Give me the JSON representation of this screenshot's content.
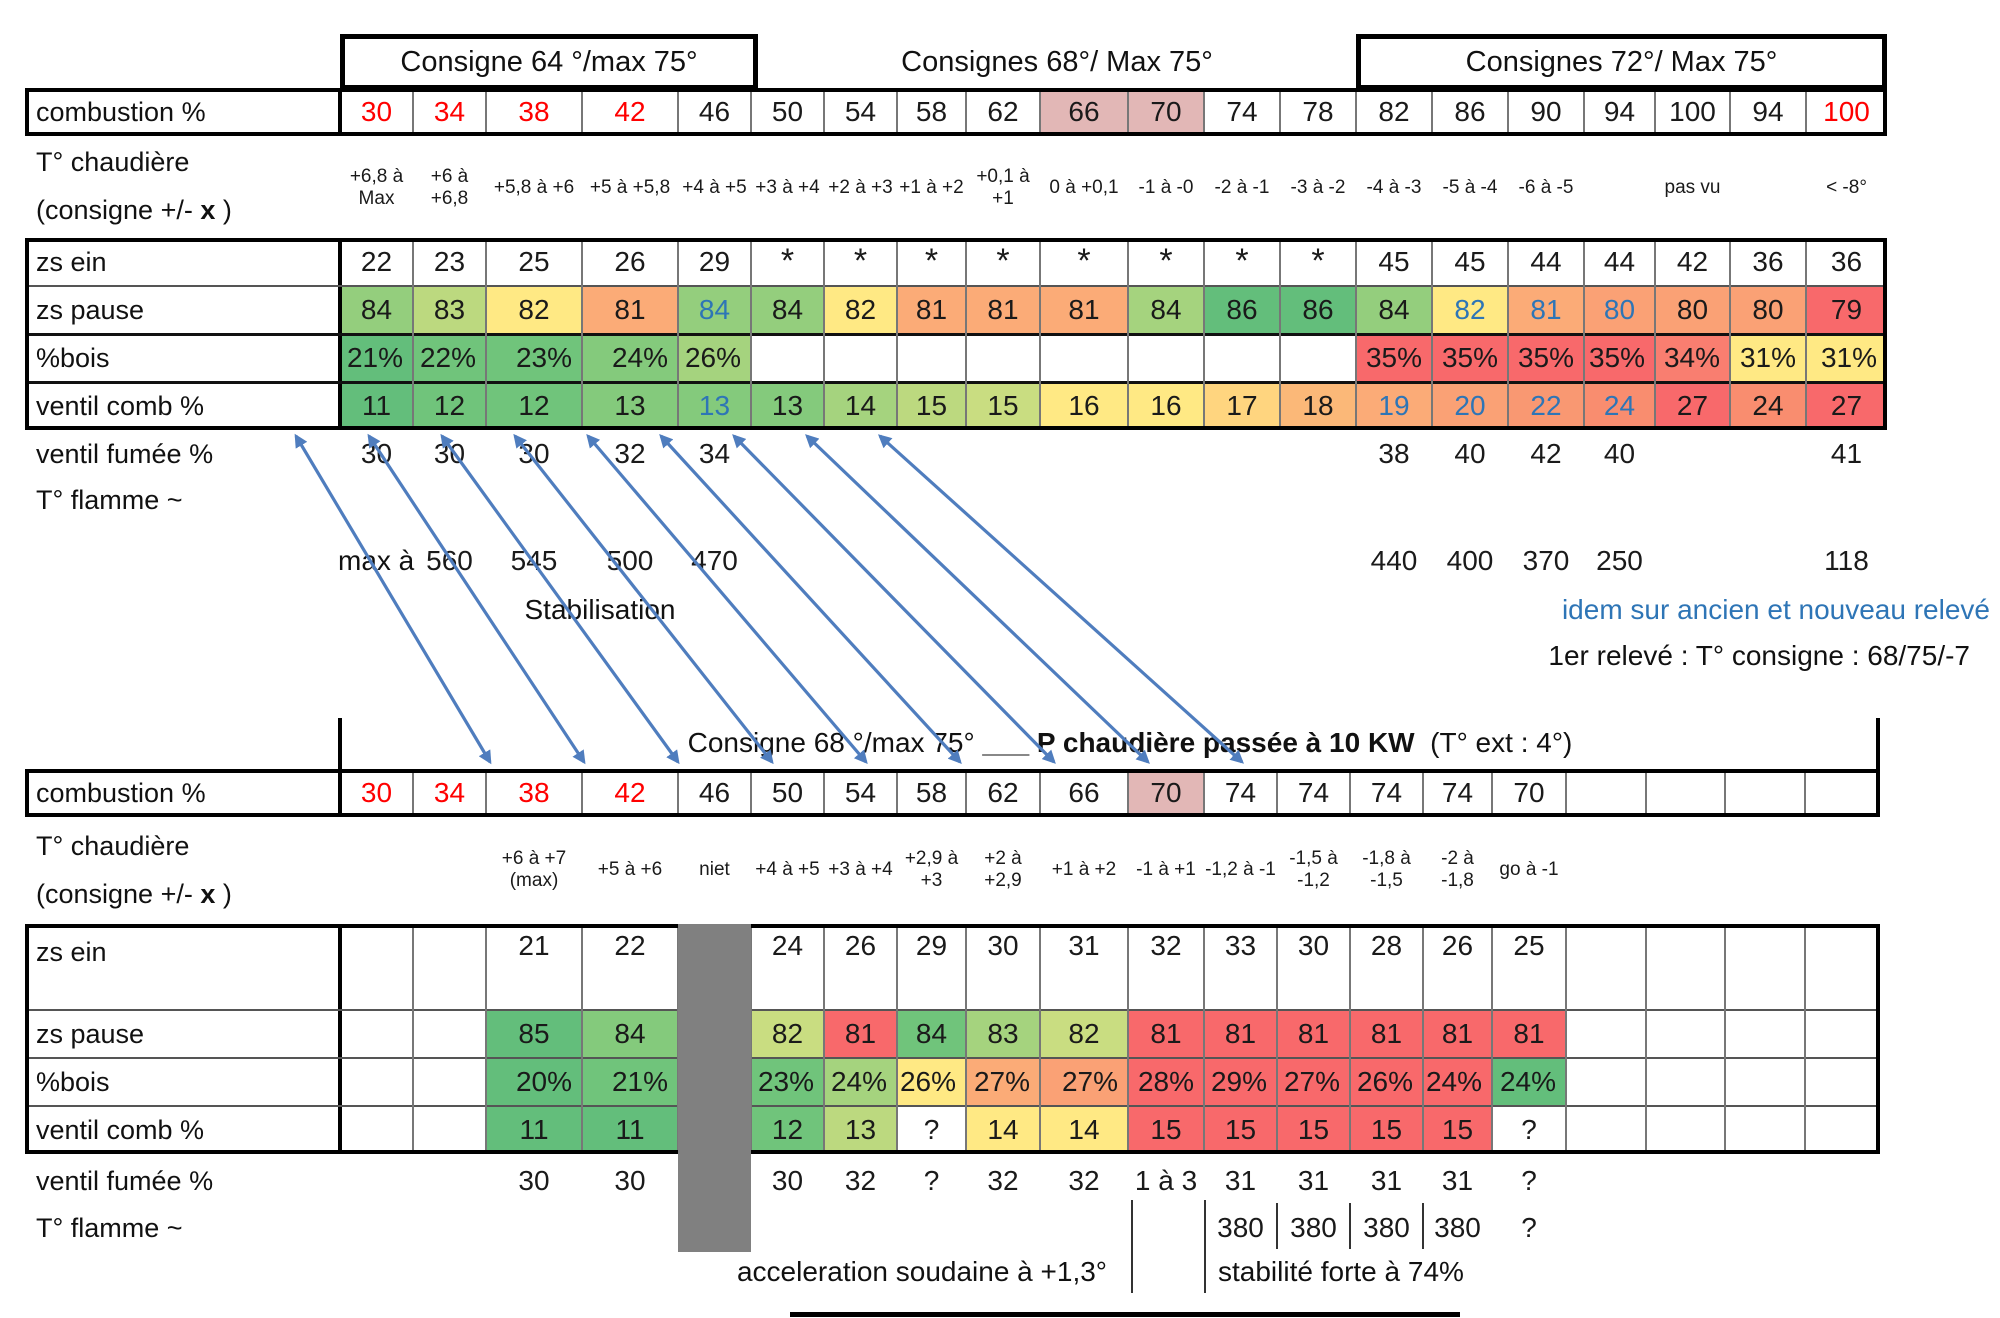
{
  "palette": {
    "g": "#63BE7B",
    "g2": "#70C47B",
    "g3": "#84CA7C",
    "g4": "#94CE7D",
    "lg": "#A5D37E",
    "yg": "#BCD97F",
    "yg2": "#C9DD81",
    "yel": "#FFE984",
    "yel2": "#FFD57F",
    "or1": "#FBB878",
    "or2": "#FBAB77",
    "or3": "#FAA175",
    "or4": "#F99872",
    "sal": "#F98D6F",
    "sal2": "#F97E70",
    "red": "#F8696B",
    "pink": "#E2B7B6",
    "gray": "#808080",
    "blue_text": "#2E75B6",
    "red_text": "#FF0000",
    "arrow_blue": "#4F7DBE"
  },
  "labels": {
    "combustion": "combustion %",
    "t_chaud1": "T° chaudière",
    "t_chaud2a": "(consigne +/- ",
    "t_chaud2b": "x",
    "t_chaud2c": " )",
    "zs_ein": "zs ein",
    "zs_pause": "zs pause",
    "bois": "%bois",
    "ventil_comb": "ventil comb %",
    "ventil_fumee": "ventil fumée %",
    "t_flamme": "T° flamme ~"
  },
  "t1": {
    "headers": [
      {
        "label": "Consigne 64 °/max 75°"
      },
      {
        "label": "Consignes 68°/ Max 75°"
      },
      {
        "label": "Consignes 72°/ Max 75°"
      }
    ],
    "combustion": {
      "values": [
        "30",
        "34",
        "38",
        "42",
        "46",
        "50",
        "54",
        "58",
        "62",
        "66",
        "70",
        "74",
        "78",
        "82",
        "86",
        "90",
        "94",
        "100",
        "94",
        "100"
      ],
      "red": [
        0,
        1,
        2,
        3,
        19
      ],
      "pink": [
        9,
        10
      ]
    },
    "t_chaudiere": [
      "+6,8 à Max",
      "+6 à +6,8",
      "+5,8 à +6",
      "+5 à +5,8",
      "+4 à +5",
      "+3 à +4",
      "+2 à +3",
      "+1 à +2",
      "+0,1 à +1",
      "0 à +0,1",
      "-1 à -0",
      "-2 à -1",
      "-3 à -2",
      "-4 à -3",
      "-5 à -4",
      "-6 à -5",
      "",
      "pas vu",
      "",
      "< -8°"
    ],
    "zs_ein": [
      "22",
      "23",
      "25",
      "26",
      "29",
      "*",
      "*",
      "*",
      "*",
      "*",
      "*",
      "*",
      "*",
      "45",
      "45",
      "44",
      "44",
      "42",
      "36",
      "36"
    ],
    "zs_pause": [
      [
        "84",
        "g4"
      ],
      [
        "83",
        "yg"
      ],
      [
        "82",
        "yel"
      ],
      [
        "81",
        "or2"
      ],
      [
        "84",
        "g4",
        "b"
      ],
      [
        "84",
        "g4"
      ],
      [
        "82",
        "yel"
      ],
      [
        "81",
        "or2"
      ],
      [
        "81",
        "or2"
      ],
      [
        "81",
        "or2"
      ],
      [
        "84",
        "lg"
      ],
      [
        "86",
        "g"
      ],
      [
        "86",
        "g"
      ],
      [
        "84",
        "g4"
      ],
      [
        "82",
        "yel",
        "b"
      ],
      [
        "81",
        "or2",
        "b"
      ],
      [
        "80",
        "or3",
        "b"
      ],
      [
        "80",
        "or3"
      ],
      [
        "80",
        "or3"
      ],
      [
        "79",
        "red"
      ]
    ],
    "bois": [
      [
        "21%",
        "g"
      ],
      [
        "22%",
        "g2"
      ],
      [
        "23%",
        "g2"
      ],
      [
        "24%",
        "g3"
      ],
      [
        "26%",
        "lg"
      ],
      null,
      null,
      null,
      null,
      null,
      null,
      null,
      null,
      [
        "35%",
        "red"
      ],
      [
        "35%",
        "red"
      ],
      [
        "35%",
        "red"
      ],
      [
        "35%",
        "red"
      ],
      [
        "34%",
        "sal2"
      ],
      [
        "31%",
        "yel"
      ],
      [
        "31%",
        "yel"
      ]
    ],
    "ventil_comb": [
      [
        "11",
        "g"
      ],
      [
        "12",
        "g2"
      ],
      [
        "12",
        "g2"
      ],
      [
        "13",
        "g3"
      ],
      [
        "13",
        "g3",
        "b"
      ],
      [
        "13",
        "g3"
      ],
      [
        "14",
        "lg"
      ],
      [
        "15",
        "yg"
      ],
      [
        "15",
        "yg2"
      ],
      [
        "16",
        "yel"
      ],
      [
        "16",
        "yel"
      ],
      [
        "17",
        "yel2"
      ],
      [
        "18",
        "or1"
      ],
      [
        "19",
        "or2",
        "b"
      ],
      [
        "20",
        "or3",
        "b"
      ],
      [
        "22",
        "or4",
        "b"
      ],
      [
        "24",
        "sal",
        "b"
      ],
      [
        "27",
        "red"
      ],
      [
        "24",
        "sal"
      ],
      [
        "27",
        "red"
      ]
    ],
    "ventil_fumee": [
      "30",
      "30",
      "30",
      "32",
      "34",
      "",
      "",
      "",
      "",
      "",
      "",
      "",
      "",
      "38",
      "40",
      "42",
      "40",
      "",
      "",
      "41"
    ],
    "t_flamme_prefix": "max à",
    "t_flamme": [
      "",
      "560",
      "545",
      "500",
      "470",
      "",
      "",
      "",
      "",
      "",
      "",
      "",
      "",
      "440",
      "400",
      "370",
      "250",
      "",
      "",
      "118"
    ],
    "notes": {
      "stabilisation": "Stabilisation",
      "idem": "idem sur ancien et nouveau relevé",
      "premier": "1er relevé : T° consigne : 68/75/-7"
    }
  },
  "t2": {
    "header": {
      "part1": "Consigne 68 °/max 75°",
      "underscore": "___",
      "bold": "P chaudière passée à 10 KW",
      "ext": "(T° ext : 4°)"
    },
    "combustion": {
      "values": [
        "30",
        "34",
        "38",
        "42",
        "46",
        "50",
        "54",
        "58",
        "62",
        "66",
        "70",
        "74",
        "74",
        "74",
        "74",
        "70",
        "",
        "",
        "",
        ""
      ],
      "red": [
        0,
        1,
        2,
        3
      ],
      "pink": [
        10
      ]
    },
    "t_chaudiere": [
      "",
      "",
      "+6 à +7 (max)",
      "+5 à +6",
      "niet",
      "+4 à +5",
      "+3 à +4",
      "+2,9 à +3",
      "+2 à +2,9",
      "+1 à +2",
      "-1 à +1",
      "-1,2 à -1",
      "-1,5 à -1,2",
      "-1,8 à -1,5",
      "-2 à -1,8",
      "go à -1",
      "",
      "",
      "",
      ""
    ],
    "zs_ein": [
      "",
      "",
      "21",
      "22",
      "",
      "24",
      "26",
      "29",
      "30",
      "31",
      "32",
      "33",
      "30",
      "28",
      "26",
      "25",
      "",
      "",
      "",
      ""
    ],
    "zs_pause": [
      null,
      null,
      [
        "85",
        "g"
      ],
      [
        "84",
        "g3"
      ],
      null,
      [
        "82",
        "yg2"
      ],
      [
        "81",
        "red"
      ],
      [
        "84",
        "g2"
      ],
      [
        "83",
        "lg"
      ],
      [
        "82",
        "yg2"
      ],
      [
        "81",
        "red"
      ],
      [
        "81",
        "red"
      ],
      [
        "81",
        "red"
      ],
      [
        "81",
        "red"
      ],
      [
        "81",
        "red"
      ],
      [
        "81",
        "red"
      ],
      null,
      null,
      null,
      null
    ],
    "bois": [
      null,
      null,
      [
        "20%",
        "g"
      ],
      [
        "21%",
        "g2"
      ],
      null,
      [
        "23%",
        "g2"
      ],
      [
        "24%",
        "lg"
      ],
      [
        "26%",
        "yel"
      ],
      [
        "27%",
        "or2"
      ],
      [
        "27%",
        "or3"
      ],
      [
        "28%",
        "red"
      ],
      [
        "29%",
        "red"
      ],
      [
        "27%",
        "red"
      ],
      [
        "26%",
        "red"
      ],
      [
        "24%",
        "red"
      ],
      [
        "24%",
        "g"
      ],
      null,
      null,
      null,
      null
    ],
    "ventil_comb": [
      null,
      null,
      [
        "11",
        "g"
      ],
      [
        "11",
        "g"
      ],
      null,
      [
        "12",
        "g2"
      ],
      [
        "13",
        "yg"
      ],
      [
        "?",
        null
      ],
      [
        "14",
        "yel"
      ],
      [
        "14",
        "yel"
      ],
      [
        "15",
        "red"
      ],
      [
        "15",
        "red"
      ],
      [
        "15",
        "red"
      ],
      [
        "15",
        "red"
      ],
      [
        "15",
        "red"
      ],
      [
        "?",
        null
      ],
      null,
      null,
      null,
      null
    ],
    "ventil_fumee": [
      "",
      "",
      "30",
      "30",
      "",
      "30",
      "32",
      "?",
      "32",
      "32",
      "1 à 3",
      "31",
      "31",
      "31",
      "31",
      "?",
      "",
      "",
      "",
      ""
    ],
    "t_flamme": [
      "",
      "",
      "",
      "",
      "",
      "",
      "",
      "",
      "",
      "",
      "",
      "380",
      "380",
      "380",
      "380",
      "?",
      "",
      "",
      "",
      ""
    ],
    "notes": {
      "accel": "acceleration soudaine à +1,3°",
      "stab": "stabilité forte à 74%"
    }
  }
}
